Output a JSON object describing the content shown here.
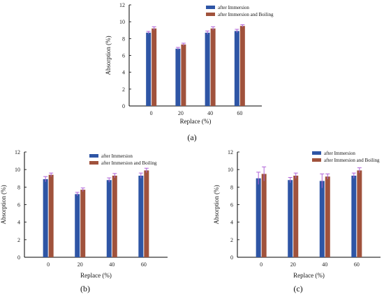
{
  "chart_data": [
    {
      "panel": "a",
      "type": "bar",
      "caption": "(a)",
      "categories": [
        "0",
        "20",
        "40",
        "60"
      ],
      "xlabel": "Replace (%)",
      "ylabel": "Absorption (%)",
      "ylim": [
        0,
        12
      ],
      "yticks": [
        "0",
        "2",
        "4",
        "6",
        "8",
        "10",
        "12"
      ],
      "legend_position": "top-left",
      "series": [
        {
          "name": "after Immersion",
          "color": "#2e55a5",
          "values": [
            8.7,
            6.8,
            8.7,
            8.9
          ],
          "errors": [
            0.15,
            0.15,
            0.2,
            0.2
          ]
        },
        {
          "name": "after Immersion and Boiling",
          "color": "#a0523c",
          "values": [
            9.2,
            7.3,
            9.2,
            9.5
          ],
          "errors": [
            0.2,
            0.15,
            0.2,
            0.15
          ]
        }
      ]
    },
    {
      "panel": "b",
      "type": "bar",
      "caption": "(b)",
      "categories": [
        "0",
        "20",
        "40",
        "60"
      ],
      "xlabel": "Replace (%)",
      "ylabel": "Absorption (%)",
      "ylim": [
        0,
        12
      ],
      "yticks": [
        "0",
        "2",
        "4",
        "6",
        "8",
        "10",
        "12"
      ],
      "legend_position": "top-right",
      "series": [
        {
          "name": "after Immersion",
          "color": "#2e55a5",
          "values": [
            8.9,
            7.2,
            8.8,
            9.3
          ],
          "errors": [
            0.3,
            0.2,
            0.25,
            0.3
          ]
        },
        {
          "name": "after Immersion and Boiling",
          "color": "#a0523c",
          "values": [
            9.4,
            7.7,
            9.3,
            9.9
          ],
          "errors": [
            0.2,
            0.2,
            0.25,
            0.25
          ]
        }
      ]
    },
    {
      "panel": "c",
      "type": "bar",
      "caption": "(c)",
      "categories": [
        "0",
        "20",
        "40",
        "60"
      ],
      "xlabel": "Replace (%)",
      "ylabel": "Absorption (%)",
      "ylim": [
        0,
        12
      ],
      "yticks": [
        "0",
        "2",
        "4",
        "6",
        "8",
        "10",
        "12"
      ],
      "legend_position": "top-right",
      "series": [
        {
          "name": "after Immersion",
          "color": "#2e55a5",
          "values": [
            9.0,
            8.8,
            8.7,
            9.3
          ],
          "errors": [
            0.7,
            0.3,
            0.8,
            0.3
          ]
        },
        {
          "name": "after Immersion and Boiling",
          "color": "#a0523c",
          "values": [
            9.5,
            9.3,
            9.2,
            9.9
          ],
          "errors": [
            0.8,
            0.3,
            0.3,
            0.3
          ]
        }
      ]
    }
  ]
}
